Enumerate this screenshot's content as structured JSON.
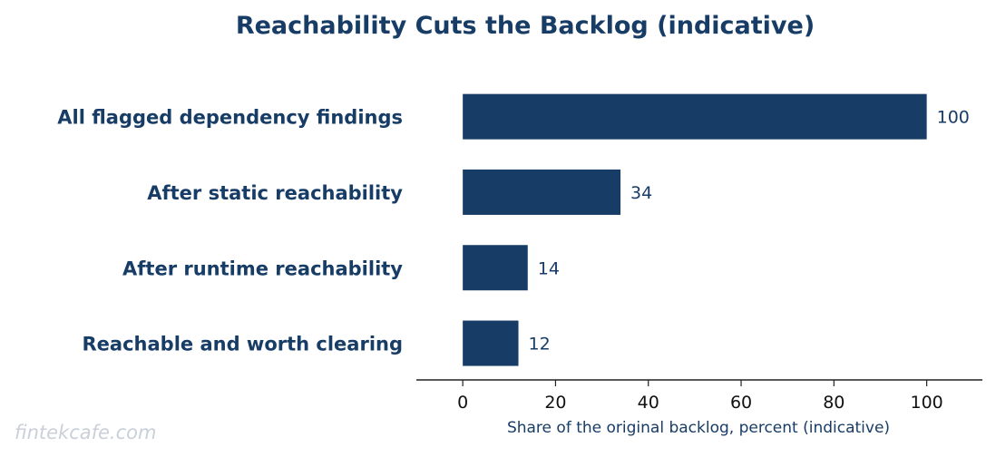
{
  "colors": {
    "bar": "#173c66",
    "title": "#173c66",
    "category_text": "#173c66",
    "value_text": "#173c66",
    "axis": "#222222",
    "tick_text": "#111111",
    "xlabel_text": "#173c66",
    "watermark": "#c9d0d9"
  },
  "watermark": "fintekcafe.com",
  "chart_data": {
    "type": "bar",
    "orientation": "horizontal",
    "title": "Reachability Cuts the Backlog (indicative)",
    "xlabel": "Share of the original backlog, percent (indicative)",
    "ylabel": "",
    "categories": [
      "All flagged dependency findings",
      "After static reachability",
      "After runtime reachability",
      "Reachable and worth clearing"
    ],
    "values": [
      100,
      34,
      14,
      12
    ],
    "xlim": [
      -10,
      112
    ],
    "xticks": [
      0,
      20,
      40,
      60,
      80,
      100
    ],
    "grid": false,
    "legend": "none"
  }
}
